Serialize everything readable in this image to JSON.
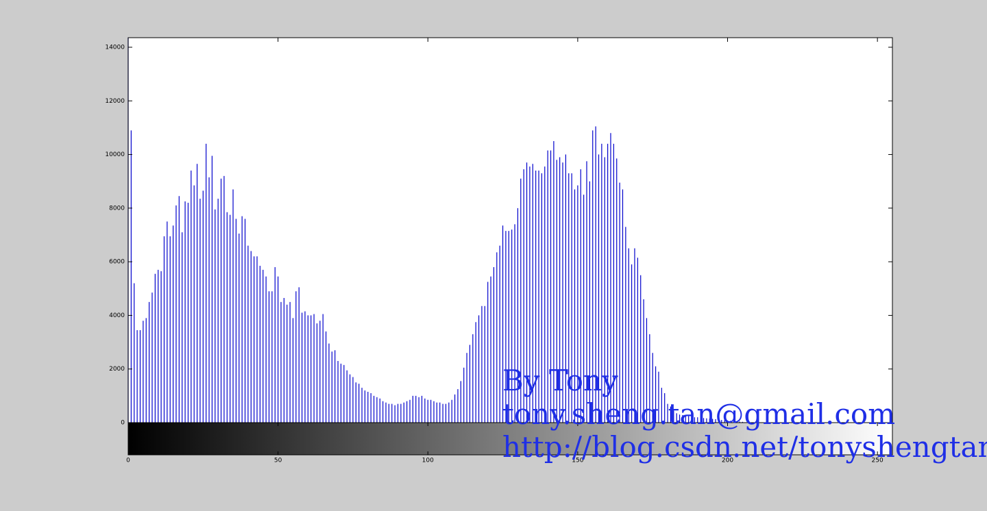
{
  "chart_data": {
    "type": "stem",
    "watermark": [
      "By Tony",
      "tony.sheng.tan@gmail.com",
      "http://blog.csdn.net/tonyshengtan"
    ],
    "color": "#0000cc",
    "xlim": [
      0,
      255
    ],
    "xticks": [
      0,
      50,
      100,
      150,
      200,
      250
    ],
    "ylim": [
      0,
      14357
    ],
    "yticks": [
      0,
      2000,
      4000,
      6000,
      8000,
      10000,
      12000,
      14000
    ],
    "values": [
      14357,
      10900,
      5200,
      3450,
      3450,
      3800,
      3900,
      4500,
      4850,
      5550,
      5700,
      5650,
      6950,
      7500,
      6950,
      7350,
      8100,
      8450,
      7100,
      8250,
      8200,
      9400,
      8850,
      9650,
      8350,
      8650,
      10400,
      9150,
      9950,
      7950,
      8350,
      9100,
      9200,
      7850,
      7750,
      8700,
      7600,
      7050,
      7700,
      7600,
      6600,
      6400,
      6200,
      6200,
      5850,
      5700,
      5450,
      4900,
      4900,
      5800,
      5450,
      4500,
      4650,
      4400,
      4500,
      3900,
      4900,
      5050,
      4100,
      4150,
      4000,
      4000,
      4050,
      3700,
      3800,
      4050,
      3400,
      2950,
      2650,
      2700,
      2300,
      2200,
      2150,
      1950,
      1800,
      1700,
      1500,
      1450,
      1300,
      1200,
      1150,
      1100,
      1000,
      950,
      900,
      800,
      750,
      700,
      700,
      650,
      700,
      700,
      750,
      800,
      850,
      1000,
      1000,
      950,
      1000,
      900,
      850,
      850,
      800,
      750,
      750,
      700,
      700,
      750,
      850,
      1050,
      1250,
      1550,
      2050,
      2600,
      2900,
      3300,
      3750,
      4000,
      4350,
      4350,
      5250,
      5450,
      5800,
      6350,
      6600,
      7350,
      7150,
      7150,
      7200,
      7400,
      8000,
      9100,
      9450,
      9700,
      9550,
      9650,
      9400,
      9400,
      9300,
      9550,
      10150,
      10150,
      10500,
      9800,
      9900,
      9700,
      10000,
      9300,
      9300,
      8700,
      8850,
      9450,
      8500,
      9750,
      9000,
      10900,
      11050,
      10000,
      10400,
      9900,
      10400,
      10800,
      10400,
      9850,
      8950,
      8700,
      7300,
      6500,
      5900,
      6500,
      6150,
      5500,
      4600,
      3900,
      3300,
      2600,
      2100,
      1900,
      1300,
      1100,
      700,
      600,
      450,
      350,
      300,
      280,
      260,
      240,
      220,
      200,
      200,
      180,
      170,
      160,
      150,
      140,
      130,
      120,
      100,
      90,
      80,
      70,
      60,
      50,
      40,
      30,
      0,
      0,
      0,
      0,
      0,
      0,
      0,
      0,
      0,
      0,
      0,
      0,
      0,
      0,
      0,
      0,
      0,
      0,
      0,
      0,
      0,
      0,
      0,
      0,
      0,
      0,
      0,
      0,
      0,
      0,
      0,
      0,
      0,
      0,
      0,
      0,
      0,
      0,
      0,
      0,
      0,
      0,
      0,
      0,
      0,
      0,
      0,
      0,
      0,
      0
    ]
  }
}
